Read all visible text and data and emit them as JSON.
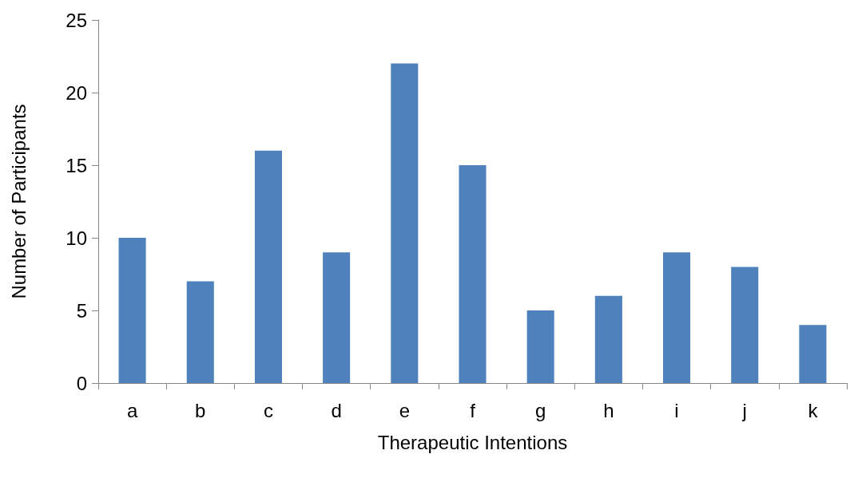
{
  "chart_data": {
    "type": "bar",
    "xlabel": "Therapeutic Intentions",
    "ylabel": "Number of Participants",
    "categories": [
      "a",
      "b",
      "c",
      "d",
      "e",
      "f",
      "g",
      "h",
      "i",
      "j",
      "k"
    ],
    "values": [
      10,
      7,
      16,
      9,
      22,
      15,
      5,
      6,
      9,
      8,
      4
    ],
    "color": "#4f81bd",
    "ylim": [
      0,
      25
    ],
    "yticks": [
      0,
      5,
      10,
      15,
      20,
      25
    ],
    "grid": false
  }
}
